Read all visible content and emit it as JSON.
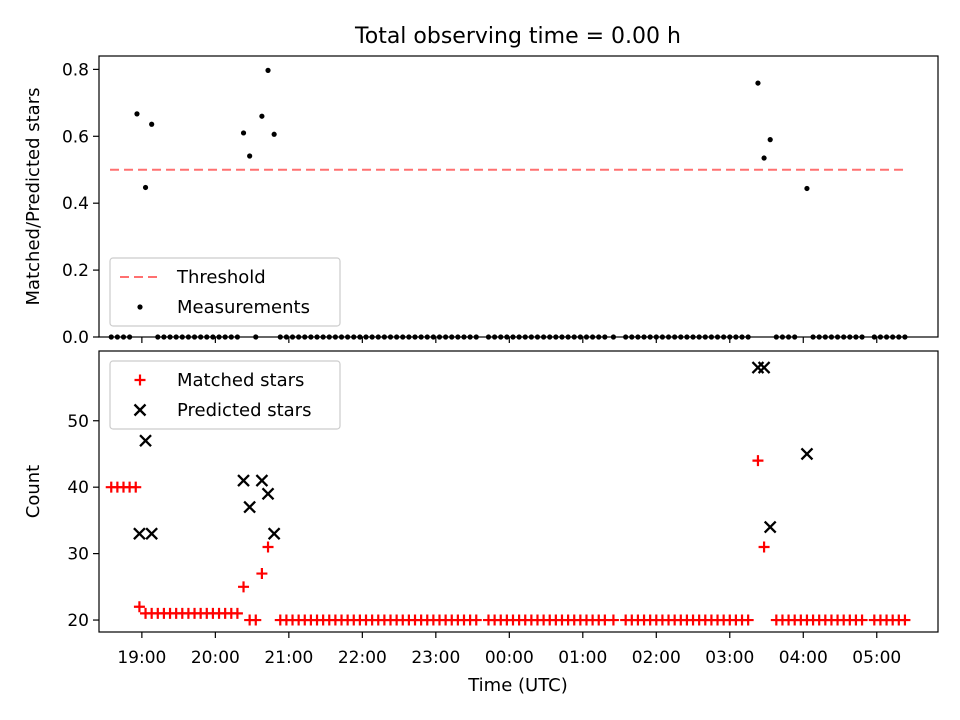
{
  "chart_data": [
    {
      "type": "scatter",
      "title": "Total observing time = 0.00 h",
      "ylabel": "Matched/Predicted stars",
      "xlabel": "",
      "xlim": [
        "18:25",
        "05:50"
      ],
      "ylim": [
        0,
        0.84
      ],
      "yticks": [
        "0.0",
        "0.2",
        "0.4",
        "0.6",
        "0.8"
      ],
      "xticks": [
        "19:00",
        "20:00",
        "21:00",
        "22:00",
        "23:00",
        "00:00",
        "01:00",
        "02:00",
        "03:00",
        "04:00",
        "05:00"
      ],
      "show_xtick_labels": false,
      "legend_position": "lower-left",
      "series": [
        {
          "name": "Threshold",
          "style": "dashed-line",
          "color": "#ff7070",
          "points": [
            [
              "18:34",
              0.5
            ],
            [
              "05:22",
              0.5
            ]
          ]
        },
        {
          "name": "Measurements",
          "style": "dot",
          "color": "#000000",
          "points": [
            [
              "18:56",
              0.667
            ],
            [
              "19:03",
              0.447
            ],
            [
              "19:08",
              0.636
            ],
            [
              "20:23",
              0.61
            ],
            [
              "20:28",
              0.541
            ],
            [
              "20:38",
              0.66
            ],
            [
              "20:43",
              0.797
            ],
            [
              "20:48",
              0.606
            ],
            [
              "03:23",
              0.759
            ],
            [
              "03:28",
              0.535
            ],
            [
              "03:33",
              0.59
            ],
            [
              "04:03",
              0.444
            ]
          ],
          "zero_times": [
            "18:35",
            "18:40",
            "18:45",
            "18:50",
            "19:13",
            "19:18",
            "19:23",
            "19:28",
            "19:33",
            "19:38",
            "19:43",
            "19:48",
            "19:53",
            "19:58",
            "20:03",
            "20:08",
            "20:13",
            "20:18",
            "20:33",
            "20:53",
            "20:58",
            "21:03",
            "21:08",
            "21:13",
            "21:18",
            "21:23",
            "21:28",
            "21:33",
            "21:38",
            "21:43",
            "21:48",
            "21:53",
            "21:58",
            "22:03",
            "22:08",
            "22:13",
            "22:18",
            "22:23",
            "22:28",
            "22:33",
            "22:38",
            "22:43",
            "22:48",
            "22:53",
            "22:58",
            "23:03",
            "23:08",
            "23:13",
            "23:18",
            "23:23",
            "23:28",
            "23:33",
            "23:43",
            "23:48",
            "23:53",
            "23:58",
            "00:03",
            "00:08",
            "00:13",
            "00:18",
            "00:23",
            "00:28",
            "00:33",
            "00:38",
            "00:43",
            "00:48",
            "00:53",
            "00:58",
            "01:03",
            "01:08",
            "01:13",
            "01:18",
            "01:25",
            "01:35",
            "01:40",
            "01:45",
            "01:50",
            "01:55",
            "02:00",
            "02:05",
            "02:10",
            "02:15",
            "02:20",
            "02:25",
            "02:30",
            "02:35",
            "02:40",
            "02:45",
            "02:50",
            "02:55",
            "03:00",
            "03:05",
            "03:10",
            "03:15",
            "03:38",
            "03:43",
            "03:48",
            "03:53",
            "04:08",
            "04:13",
            "04:18",
            "04:23",
            "04:28",
            "04:33",
            "04:38",
            "04:43",
            "04:48",
            "04:58",
            "05:03",
            "05:08",
            "05:13",
            "05:18",
            "05:23"
          ]
        }
      ]
    },
    {
      "type": "scatter",
      "title": "",
      "ylabel": "Count",
      "xlabel": "Time (UTC)",
      "xlim": [
        "18:25",
        "05:50"
      ],
      "ylim": [
        18.2,
        60.5
      ],
      "yticks": [
        "20",
        "30",
        "40",
        "50"
      ],
      "xticks": [
        "19:00",
        "20:00",
        "21:00",
        "22:00",
        "23:00",
        "00:00",
        "01:00",
        "02:00",
        "03:00",
        "04:00",
        "05:00"
      ],
      "show_xtick_labels": true,
      "legend_position": "upper-left",
      "series": [
        {
          "name": "Matched stars",
          "marker": "plus",
          "color": "#ff0000",
          "default_value": 20,
          "points": [
            [
              "18:35",
              40
            ],
            [
              "18:40",
              40
            ],
            [
              "18:45",
              40
            ],
            [
              "18:50",
              40
            ],
            [
              "18:55",
              40
            ],
            [
              "18:58",
              22
            ],
            [
              "19:03",
              21
            ],
            [
              "19:08",
              21
            ],
            [
              "19:13",
              21
            ],
            [
              "19:18",
              21
            ],
            [
              "19:23",
              21
            ],
            [
              "19:28",
              21
            ],
            [
              "19:33",
              21
            ],
            [
              "19:38",
              21
            ],
            [
              "19:43",
              21
            ],
            [
              "19:48",
              21
            ],
            [
              "19:53",
              21
            ],
            [
              "19:58",
              21
            ],
            [
              "20:03",
              21
            ],
            [
              "20:08",
              21
            ],
            [
              "20:13",
              21
            ],
            [
              "20:18",
              21
            ],
            [
              "20:23",
              25
            ],
            [
              "20:38",
              27
            ],
            [
              "20:43",
              31
            ],
            [
              "03:23",
              44
            ],
            [
              "03:28",
              31
            ]
          ],
          "baseline_times": [
            "20:28",
            "20:33",
            "20:53",
            "20:58",
            "21:03",
            "21:08",
            "21:13",
            "21:18",
            "21:23",
            "21:28",
            "21:33",
            "21:38",
            "21:43",
            "21:48",
            "21:53",
            "21:58",
            "22:03",
            "22:08",
            "22:13",
            "22:18",
            "22:23",
            "22:28",
            "22:33",
            "22:38",
            "22:43",
            "22:48",
            "22:53",
            "22:58",
            "23:03",
            "23:08",
            "23:13",
            "23:18",
            "23:23",
            "23:28",
            "23:33",
            "23:43",
            "23:48",
            "23:53",
            "23:58",
            "00:03",
            "00:08",
            "00:13",
            "00:18",
            "00:23",
            "00:28",
            "00:33",
            "00:38",
            "00:43",
            "00:48",
            "00:53",
            "00:58",
            "01:03",
            "01:08",
            "01:13",
            "01:18",
            "01:25",
            "01:35",
            "01:40",
            "01:45",
            "01:50",
            "01:55",
            "02:00",
            "02:05",
            "02:10",
            "02:15",
            "02:20",
            "02:25",
            "02:30",
            "02:35",
            "02:40",
            "02:45",
            "02:50",
            "02:55",
            "03:00",
            "03:05",
            "03:10",
            "03:15",
            "03:38",
            "03:43",
            "03:48",
            "03:53",
            "03:58",
            "04:03",
            "04:08",
            "04:13",
            "04:18",
            "04:23",
            "04:28",
            "04:33",
            "04:38",
            "04:43",
            "04:48",
            "04:58",
            "05:03",
            "05:08",
            "05:13",
            "05:18",
            "05:23"
          ]
        },
        {
          "name": "Predicted stars",
          "marker": "x",
          "color": "#000000",
          "points": [
            [
              "18:58",
              33
            ],
            [
              "19:03",
              47
            ],
            [
              "19:08",
              33
            ],
            [
              "20:23",
              41
            ],
            [
              "20:28",
              37
            ],
            [
              "20:38",
              41
            ],
            [
              "20:43",
              39
            ],
            [
              "20:48",
              33
            ],
            [
              "03:23",
              58
            ],
            [
              "03:28",
              58
            ],
            [
              "03:33",
              34
            ],
            [
              "04:03",
              45
            ]
          ]
        }
      ]
    }
  ]
}
